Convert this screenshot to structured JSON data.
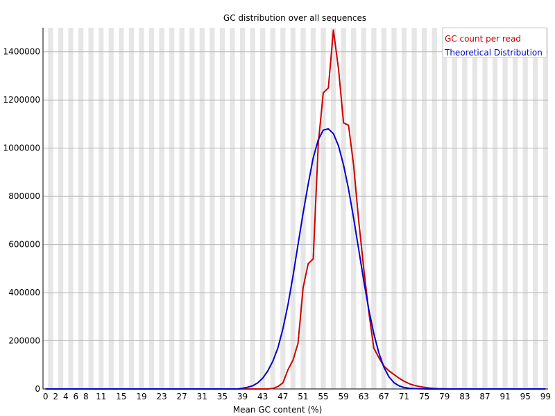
{
  "chart_data": {
    "type": "line",
    "title": "GC distribution over all sequences",
    "xlabel": "Mean GC content (%)",
    "ylabel": "",
    "xlim": [
      0,
      100
    ],
    "ylim": [
      0,
      1500000
    ],
    "grid": true,
    "legend_position": "top-right",
    "x_ticks": [
      "0",
      "2",
      "4",
      "6",
      "8",
      "11",
      "15",
      "19",
      "23",
      "27",
      "31",
      "35",
      "39",
      "43",
      "47",
      "51",
      "55",
      "59",
      "63",
      "67",
      "71",
      "75",
      "79",
      "83",
      "87",
      "91",
      "95",
      "99"
    ],
    "y_ticks": [
      "0",
      "200000",
      "400000",
      "600000",
      "800000",
      "1000000",
      "1200000",
      "1400000"
    ],
    "series": [
      {
        "name": "GC count per read",
        "color": "#cc0000",
        "x": [
          0,
          39,
          40,
          41,
          42,
          43,
          44,
          45,
          46,
          47,
          48,
          49,
          50,
          51,
          52,
          53,
          54,
          55,
          56,
          57,
          58,
          59,
          60,
          61,
          62,
          63,
          64,
          65,
          66,
          67,
          68,
          69,
          70,
          71,
          72,
          73,
          74,
          75,
          76,
          77,
          78,
          79,
          80,
          81,
          99
        ],
        "y": [
          0,
          0,
          0,
          0,
          0,
          0,
          0,
          2000,
          10000,
          25000,
          80000,
          120000,
          190000,
          420000,
          520000,
          540000,
          1020000,
          1230000,
          1250000,
          1490000,
          1330000,
          1105000,
          1095000,
          930000,
          700000,
          500000,
          320000,
          170000,
          130000,
          95000,
          75000,
          60000,
          45000,
          32000,
          22000,
          15000,
          10000,
          7000,
          4000,
          2000,
          1000,
          500,
          0,
          0,
          0
        ]
      },
      {
        "name": "Theoretical Distribution",
        "color": "#0000cc",
        "x": [
          0,
          38,
          39,
          40,
          41,
          42,
          43,
          44,
          45,
          46,
          47,
          48,
          49,
          50,
          51,
          52,
          53,
          54,
          55,
          56,
          57,
          58,
          59,
          60,
          61,
          62,
          63,
          64,
          65,
          66,
          67,
          68,
          69,
          70,
          71,
          72,
          73,
          74,
          75,
          76,
          77,
          78,
          99
        ],
        "y": [
          0,
          0,
          3000,
          7000,
          13000,
          25000,
          45000,
          75000,
          115000,
          170000,
          250000,
          350000,
          470000,
          600000,
          730000,
          850000,
          960000,
          1035000,
          1075000,
          1080000,
          1060000,
          1010000,
          930000,
          830000,
          710000,
          580000,
          450000,
          330000,
          230000,
          150000,
          90000,
          50000,
          26000,
          13000,
          6000,
          3000,
          1500,
          700,
          300,
          100,
          0,
          0,
          0
        ]
      }
    ]
  }
}
